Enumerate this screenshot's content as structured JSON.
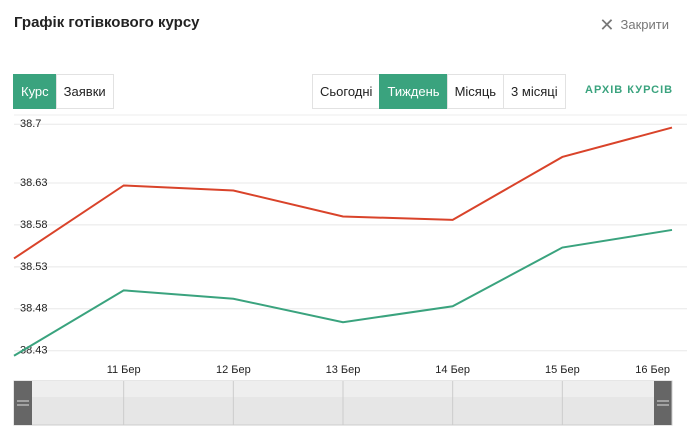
{
  "header": {
    "title": "Графік готівкового курсу",
    "close": "Закрити"
  },
  "tabs": [
    "Курс",
    "Заявки"
  ],
  "periods": [
    "Сьогодні",
    "Тиждень",
    "Місяць",
    "3 місяці"
  ],
  "archive_link": "АРХІВ КУРСІВ",
  "chart_data": {
    "type": "line",
    "categories": [
      null,
      "11 Бер",
      "12 Бер",
      "13 Бер",
      "14 Бер",
      "15 Бер",
      "16 Бер"
    ],
    "series": [
      {
        "color": "#d9432a",
        "values": [
          38.54,
          38.627,
          38.621,
          38.59,
          38.586,
          38.661,
          38.696
        ]
      },
      {
        "color": "#3aa37e",
        "values": [
          38.424,
          38.502,
          38.492,
          38.464,
          38.483,
          38.553,
          38.574
        ]
      }
    ],
    "ylim": [
      38.413,
      38.711
    ],
    "yticks": [
      38.43,
      38.48,
      38.53,
      38.58,
      38.63,
      38.7
    ],
    "grid": true
  }
}
